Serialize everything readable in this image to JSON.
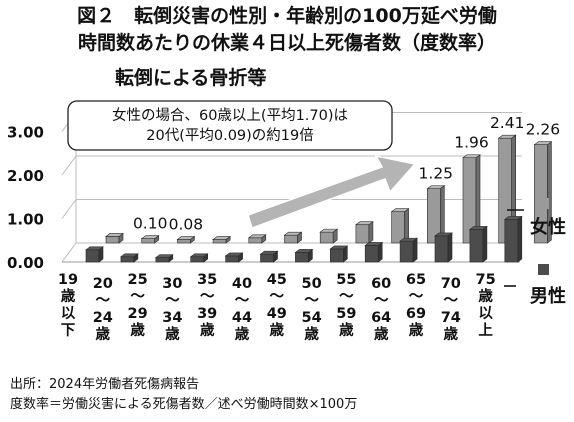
{
  "title_line1": "図２　転倒災害の性別・年齢別の100万延べ労働",
  "title_line2": "時間数あたりの休業４日以上死傷者数（度数率）",
  "highlight_label": "転倒による骨折等",
  "callout_line1": "女性の場合、60歳以上(平均1.70)は",
  "callout_line2": "20代(平均0.09)の約19倍",
  "source": "出所：2024年労働者死傷病報告",
  "definition": "度数率＝労働災害による死傷者数／述べ労働時間数×100万",
  "chart_data": {
    "type": "bar",
    "title": "図２　転倒災害の性別・年齢別の100万延べ労働時間数あたりの休業４日以上死傷者数（度数率）",
    "categories": [
      [
        "19",
        "歳",
        "以",
        "下"
      ],
      [
        "20",
        "～",
        "24",
        "歳"
      ],
      [
        "25",
        "～",
        "29",
        "歳"
      ],
      [
        "30",
        "～",
        "34",
        "歳"
      ],
      [
        "35",
        "～",
        "39",
        "歳"
      ],
      [
        "40",
        "～",
        "44",
        "歳"
      ],
      [
        "45",
        "～",
        "49",
        "歳"
      ],
      [
        "50",
        "～",
        "54",
        "歳"
      ],
      [
        "55",
        "～",
        "59",
        "歳"
      ],
      [
        "60",
        "～",
        "64",
        "歳"
      ],
      [
        "65",
        "～",
        "69",
        "歳"
      ],
      [
        "70",
        "～",
        "74",
        "歳"
      ],
      [
        "75",
        "歳",
        "以",
        "上"
      ]
    ],
    "series": [
      {
        "name": "女性",
        "color": "#9a9a9a",
        "values": [
          0.15,
          0.1,
          0.08,
          0.08,
          0.12,
          0.18,
          0.25,
          0.42,
          0.72,
          1.25,
          1.96,
          2.41,
          2.26
        ],
        "labels": [
          "",
          "0.10",
          "0.08",
          "",
          "",
          "",
          "",
          "",
          "",
          "1.25",
          "1.96",
          "2.41",
          "2.26"
        ]
      },
      {
        "name": "男性",
        "color": "#4c4c4c",
        "values": [
          0.28,
          0.12,
          0.1,
          0.12,
          0.14,
          0.18,
          0.22,
          0.3,
          0.38,
          0.48,
          0.6,
          0.75,
          0.98
        ],
        "labels": [
          "",
          "",
          "",
          "",
          "",
          "",
          "",
          "",
          "",
          "",
          "",
          "",
          ""
        ]
      }
    ],
    "y_ticks": [
      "0.00",
      "1.00",
      "2.00",
      "3.00"
    ],
    "ylim": [
      0,
      3
    ],
    "grid": true,
    "legend": "right"
  }
}
